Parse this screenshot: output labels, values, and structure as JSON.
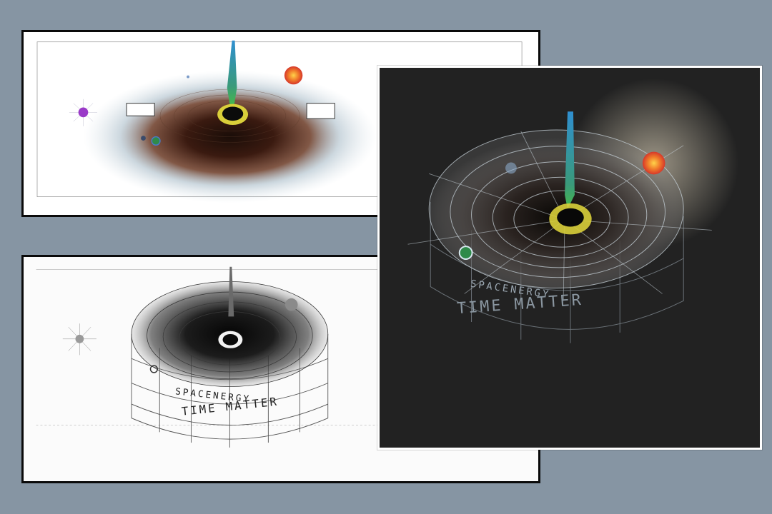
{
  "scene": {
    "background_color": "#8695a3",
    "artworks": [
      {
        "id": "colored-pencil-drawing",
        "medium": "colored pencil sketch",
        "subject": "black hole with accretion disk, jet and orbiting planets"
      },
      {
        "id": "graphite-sketch",
        "medium": "graphite pencil sketch",
        "subject": "black hole funnel on cylindrical spacetime grid",
        "lettering": [
          "SPACENERGY",
          "TIME MATTER"
        ]
      },
      {
        "id": "digital-painting",
        "medium": "digital painting on dark background",
        "subject": "black hole funnel with glowing grid and red star",
        "lettering": [
          "SPACENERGY",
          "TIME MATTER"
        ]
      }
    ]
  },
  "colors": {
    "frame_dark": "#0a0a0a",
    "frame_light": "#ffffff",
    "dark_canvas": "#222222",
    "jet_blue": "#2f8fd0",
    "jet_green": "#46b84a",
    "ring_yellow": "#d9cf3a",
    "star_red": "#e8502c",
    "planet_purple": "#9a3ac8"
  }
}
